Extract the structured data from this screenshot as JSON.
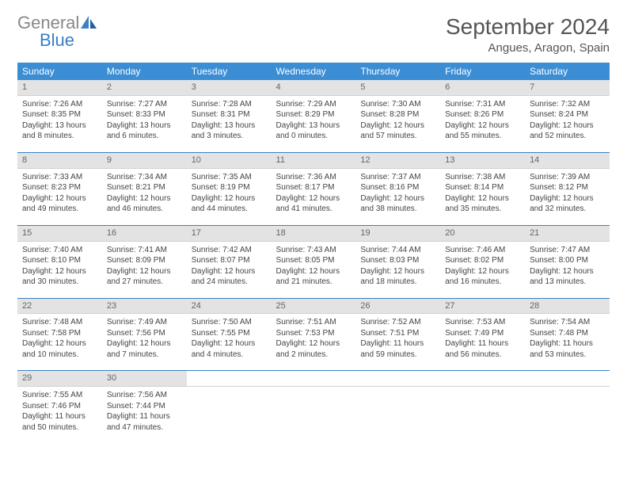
{
  "logo": {
    "general": "General",
    "blue": "Blue"
  },
  "title": "September 2024",
  "location": "Angues, Aragon, Spain",
  "colors": {
    "header_bg": "#3b8dd4",
    "header_text": "#ffffff",
    "daynum_bg": "#e3e3e3",
    "week_divider": "#3b7fc4",
    "logo_gray": "#888888",
    "logo_blue": "#3b7fc4"
  },
  "weekdays": [
    "Sunday",
    "Monday",
    "Tuesday",
    "Wednesday",
    "Thursday",
    "Friday",
    "Saturday"
  ],
  "weeks": [
    [
      {
        "n": "1",
        "sr": "7:26 AM",
        "ss": "8:35 PM",
        "dl": "13 hours and 8 minutes."
      },
      {
        "n": "2",
        "sr": "7:27 AM",
        "ss": "8:33 PM",
        "dl": "13 hours and 6 minutes."
      },
      {
        "n": "3",
        "sr": "7:28 AM",
        "ss": "8:31 PM",
        "dl": "13 hours and 3 minutes."
      },
      {
        "n": "4",
        "sr": "7:29 AM",
        "ss": "8:29 PM",
        "dl": "13 hours and 0 minutes."
      },
      {
        "n": "5",
        "sr": "7:30 AM",
        "ss": "8:28 PM",
        "dl": "12 hours and 57 minutes."
      },
      {
        "n": "6",
        "sr": "7:31 AM",
        "ss": "8:26 PM",
        "dl": "12 hours and 55 minutes."
      },
      {
        "n": "7",
        "sr": "7:32 AM",
        "ss": "8:24 PM",
        "dl": "12 hours and 52 minutes."
      }
    ],
    [
      {
        "n": "8",
        "sr": "7:33 AM",
        "ss": "8:23 PM",
        "dl": "12 hours and 49 minutes."
      },
      {
        "n": "9",
        "sr": "7:34 AM",
        "ss": "8:21 PM",
        "dl": "12 hours and 46 minutes."
      },
      {
        "n": "10",
        "sr": "7:35 AM",
        "ss": "8:19 PM",
        "dl": "12 hours and 44 minutes."
      },
      {
        "n": "11",
        "sr": "7:36 AM",
        "ss": "8:17 PM",
        "dl": "12 hours and 41 minutes."
      },
      {
        "n": "12",
        "sr": "7:37 AM",
        "ss": "8:16 PM",
        "dl": "12 hours and 38 minutes."
      },
      {
        "n": "13",
        "sr": "7:38 AM",
        "ss": "8:14 PM",
        "dl": "12 hours and 35 minutes."
      },
      {
        "n": "14",
        "sr": "7:39 AM",
        "ss": "8:12 PM",
        "dl": "12 hours and 32 minutes."
      }
    ],
    [
      {
        "n": "15",
        "sr": "7:40 AM",
        "ss": "8:10 PM",
        "dl": "12 hours and 30 minutes."
      },
      {
        "n": "16",
        "sr": "7:41 AM",
        "ss": "8:09 PM",
        "dl": "12 hours and 27 minutes."
      },
      {
        "n": "17",
        "sr": "7:42 AM",
        "ss": "8:07 PM",
        "dl": "12 hours and 24 minutes."
      },
      {
        "n": "18",
        "sr": "7:43 AM",
        "ss": "8:05 PM",
        "dl": "12 hours and 21 minutes."
      },
      {
        "n": "19",
        "sr": "7:44 AM",
        "ss": "8:03 PM",
        "dl": "12 hours and 18 minutes."
      },
      {
        "n": "20",
        "sr": "7:46 AM",
        "ss": "8:02 PM",
        "dl": "12 hours and 16 minutes."
      },
      {
        "n": "21",
        "sr": "7:47 AM",
        "ss": "8:00 PM",
        "dl": "12 hours and 13 minutes."
      }
    ],
    [
      {
        "n": "22",
        "sr": "7:48 AM",
        "ss": "7:58 PM",
        "dl": "12 hours and 10 minutes."
      },
      {
        "n": "23",
        "sr": "7:49 AM",
        "ss": "7:56 PM",
        "dl": "12 hours and 7 minutes."
      },
      {
        "n": "24",
        "sr": "7:50 AM",
        "ss": "7:55 PM",
        "dl": "12 hours and 4 minutes."
      },
      {
        "n": "25",
        "sr": "7:51 AM",
        "ss": "7:53 PM",
        "dl": "12 hours and 2 minutes."
      },
      {
        "n": "26",
        "sr": "7:52 AM",
        "ss": "7:51 PM",
        "dl": "11 hours and 59 minutes."
      },
      {
        "n": "27",
        "sr": "7:53 AM",
        "ss": "7:49 PM",
        "dl": "11 hours and 56 minutes."
      },
      {
        "n": "28",
        "sr": "7:54 AM",
        "ss": "7:48 PM",
        "dl": "11 hours and 53 minutes."
      }
    ],
    [
      {
        "n": "29",
        "sr": "7:55 AM",
        "ss": "7:46 PM",
        "dl": "11 hours and 50 minutes."
      },
      {
        "n": "30",
        "sr": "7:56 AM",
        "ss": "7:44 PM",
        "dl": "11 hours and 47 minutes."
      },
      null,
      null,
      null,
      null,
      null
    ]
  ],
  "labels": {
    "sunrise": "Sunrise:",
    "sunset": "Sunset:",
    "daylight": "Daylight:"
  }
}
